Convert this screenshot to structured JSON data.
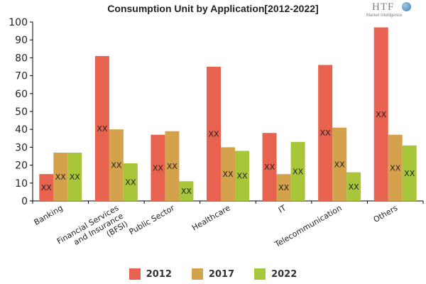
{
  "chart_data": {
    "type": "bar",
    "title": "Consumption Unit by  Application[2012-2022]",
    "categories": [
      "Banking",
      "Financial Services\nand Insurance\n(BFSI)",
      "Public Sector",
      "Healthcare",
      "IT",
      "Telecommunication",
      "Others"
    ],
    "series": [
      {
        "name": "2012",
        "color": "#e8634f",
        "values": [
          15,
          81,
          37,
          75,
          38,
          76,
          97
        ]
      },
      {
        "name": "2017",
        "color": "#d4a24c",
        "values": [
          27,
          40,
          39,
          30,
          15,
          41,
          37
        ]
      },
      {
        "name": "2022",
        "color": "#a8c63a",
        "values": [
          27,
          21,
          11,
          28,
          33,
          16,
          31
        ]
      }
    ],
    "data_label": "XX",
    "ylim": [
      0,
      100
    ],
    "yticks": [
      0,
      10,
      20,
      30,
      40,
      50,
      60,
      70,
      80,
      90,
      100
    ],
    "grid": false,
    "legend_position": "bottom"
  },
  "logo": {
    "main": "HTF",
    "sub": "Market Intelligence"
  }
}
